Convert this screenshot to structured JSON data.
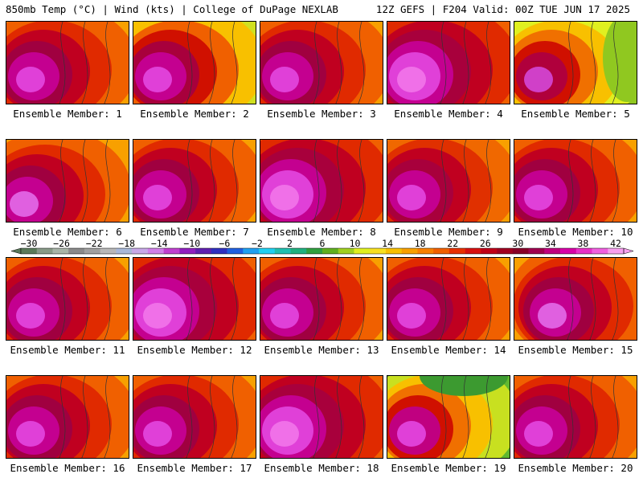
{
  "header": {
    "left": "850mb Temp (°C) | Wind (kts) | College of DuPage NEXLAB",
    "right": "12Z GEFS | F204 Valid: 00Z TUE JUN 17 2025"
  },
  "members": [
    {
      "label": "Ensemble Member: 1",
      "regime": "hot"
    },
    {
      "label": "Ensemble Member: 2",
      "regime": "hot-cool-east"
    },
    {
      "label": "Ensemble Member: 3",
      "regime": "hot"
    },
    {
      "label": "Ensemble Member: 4",
      "regime": "very-hot"
    },
    {
      "label": "Ensemble Member: 5",
      "regime": "cool-east"
    },
    {
      "label": "Ensemble Member: 6",
      "regime": "hot-sw"
    },
    {
      "label": "Ensemble Member: 7",
      "regime": "hot"
    },
    {
      "label": "Ensemble Member: 8",
      "regime": "very-hot"
    },
    {
      "label": "Ensemble Member: 9",
      "regime": "hot-west"
    },
    {
      "label": "Ensemble Member: 10",
      "regime": "hot"
    },
    {
      "label": "Ensemble Member: 11",
      "regime": "hot"
    },
    {
      "label": "Ensemble Member: 12",
      "regime": "very-hot"
    },
    {
      "label": "Ensemble Member: 13",
      "regime": "hot"
    },
    {
      "label": "Ensemble Member: 14",
      "regime": "hot"
    },
    {
      "label": "Ensemble Member: 15",
      "regime": "hot-center"
    },
    {
      "label": "Ensemble Member: 16",
      "regime": "hot"
    },
    {
      "label": "Ensemble Member: 17",
      "regime": "hot"
    },
    {
      "label": "Ensemble Member: 18",
      "regime": "very-hot"
    },
    {
      "label": "Ensemble Member: 19",
      "regime": "cool-north"
    },
    {
      "label": "Ensemble Member: 20",
      "regime": "hot"
    }
  ],
  "colorbar": {
    "unit": "°C",
    "labels": [
      "-30",
      "-26",
      "-22",
      "-18",
      "-14",
      "-10",
      "-6",
      "-2",
      "2",
      "6",
      "10",
      "14",
      "18",
      "22",
      "26",
      "30",
      "34",
      "38",
      "42"
    ],
    "colors": [
      "#5a7a5a",
      "#889a88",
      "#a8b4a8",
      "#8a8a8a",
      "#a0a0a0",
      "#b8b8b8",
      "#a8b8d8",
      "#c8a8e8",
      "#d080e8",
      "#c040d0",
      "#9020c0",
      "#6020b0",
      "#3030c0",
      "#2060e0",
      "#20a0f0",
      "#20d0f0",
      "#20c0b0",
      "#20b080",
      "#30a040",
      "#60b020",
      "#a0d020",
      "#e0f020",
      "#f8e020",
      "#f8c000",
      "#f8a000",
      "#f88000",
      "#f06000",
      "#e83000",
      "#d81010",
      "#c00018",
      "#a00020",
      "#880028",
      "#a00050",
      "#c00080",
      "#d800a8",
      "#e830c8",
      "#f060e0",
      "#f8a0f0"
    ]
  }
}
